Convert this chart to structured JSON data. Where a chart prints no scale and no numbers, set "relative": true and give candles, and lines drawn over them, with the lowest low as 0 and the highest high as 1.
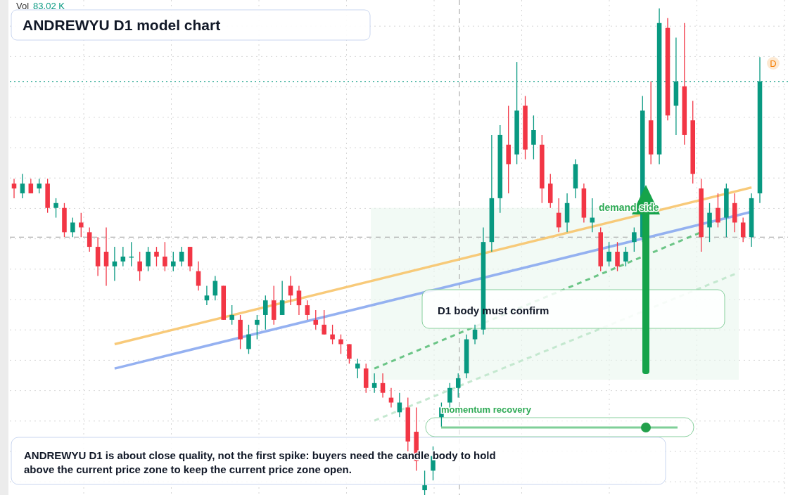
{
  "chart_data": {
    "type": "candlestick",
    "title": "ANDREWYU D1 model chart",
    "relative": true,
    "categories": [
      null,
      null,
      null,
      null,
      null,
      null,
      null,
      null,
      null,
      null,
      null,
      null,
      null,
      null,
      null,
      null,
      null,
      null,
      null,
      null,
      null,
      null,
      null,
      null,
      null,
      null,
      null,
      null,
      null,
      null,
      null,
      null,
      null,
      null,
      null,
      null,
      null,
      null,
      null,
      null,
      null,
      null,
      null,
      null,
      null,
      null,
      null,
      null,
      null,
      null,
      null,
      null,
      null,
      null,
      null,
      null,
      null,
      null,
      null,
      null,
      null,
      null,
      null,
      null,
      null,
      null,
      null,
      null,
      null,
      null,
      null,
      null,
      null,
      null,
      null,
      null,
      null,
      null,
      null,
      null,
      null,
      null,
      null,
      null,
      null,
      null,
      null,
      null,
      null,
      null
    ],
    "ohlc": [
      [
        0.64,
        0.65,
        0.61,
        0.63
      ],
      [
        0.62,
        0.66,
        0.61,
        0.64
      ],
      [
        0.64,
        0.65,
        0.62,
        0.62
      ],
      [
        0.63,
        0.65,
        0.62,
        0.64
      ],
      [
        0.64,
        0.65,
        0.58,
        0.59
      ],
      [
        0.59,
        0.61,
        0.57,
        0.6
      ],
      [
        0.59,
        0.6,
        0.53,
        0.54
      ],
      [
        0.54,
        0.57,
        0.53,
        0.56
      ],
      [
        0.56,
        0.58,
        0.53,
        0.55
      ],
      [
        0.54,
        0.55,
        0.5,
        0.51
      ],
      [
        0.51,
        0.53,
        0.45,
        0.47
      ],
      [
        0.5,
        0.55,
        0.43,
        0.47
      ],
      [
        0.47,
        0.51,
        0.44,
        0.48
      ],
      [
        0.48,
        0.51,
        0.47,
        0.49
      ],
      [
        0.49,
        0.52,
        0.47,
        0.49
      ],
      [
        0.48,
        0.5,
        0.44,
        0.46
      ],
      [
        0.47,
        0.51,
        0.46,
        0.5
      ],
      [
        0.5,
        0.51,
        0.47,
        0.49
      ],
      [
        0.49,
        0.52,
        0.46,
        0.47
      ],
      [
        0.47,
        0.5,
        0.46,
        0.48
      ],
      [
        0.48,
        0.51,
        0.47,
        0.5
      ],
      [
        0.51,
        0.51,
        0.46,
        0.47
      ],
      [
        0.46,
        0.48,
        0.42,
        0.43
      ],
      [
        0.4,
        0.43,
        0.39,
        0.41
      ],
      [
        0.41,
        0.45,
        0.4,
        0.44
      ],
      [
        0.43,
        0.43,
        0.36,
        0.36
      ],
      [
        0.36,
        0.39,
        0.35,
        0.37
      ],
      [
        0.36,
        0.37,
        0.3,
        0.32
      ],
      [
        0.3,
        0.35,
        0.29,
        0.33
      ],
      [
        0.35,
        0.37,
        0.32,
        0.36
      ],
      [
        0.37,
        0.41,
        0.34,
        0.4
      ],
      [
        0.4,
        0.43,
        0.35,
        0.36
      ],
      [
        0.37,
        0.44,
        0.37,
        0.4
      ],
      [
        0.43,
        0.45,
        0.39,
        0.41
      ],
      [
        0.42,
        0.43,
        0.37,
        0.39
      ],
      [
        0.39,
        0.4,
        0.36,
        0.37
      ],
      [
        0.36,
        0.38,
        0.34,
        0.35
      ],
      [
        0.35,
        0.38,
        0.33,
        0.33
      ],
      [
        0.33,
        0.35,
        0.31,
        0.32
      ],
      [
        0.32,
        0.33,
        0.29,
        0.31
      ],
      [
        0.31,
        0.31,
        0.27,
        0.28
      ],
      [
        0.26,
        0.28,
        0.24,
        0.27
      ],
      [
        0.26,
        0.27,
        0.21,
        0.22
      ],
      [
        0.22,
        0.25,
        0.21,
        0.23
      ],
      [
        0.23,
        0.25,
        0.2,
        0.21
      ],
      [
        0.2,
        0.22,
        0.18,
        0.19
      ],
      [
        0.17,
        0.21,
        0.16,
        0.19
      ],
      [
        0.18,
        0.2,
        0.09,
        0.11
      ],
      [
        0.13,
        0.18,
        0.05,
        0.07
      ],
      [
        0.01,
        0.05,
        0,
        0.02
      ],
      [
        0.05,
        0.1,
        0.03,
        0.08
      ],
      [
        0.16,
        0.19,
        0.14,
        0.18
      ],
      [
        0.19,
        0.23,
        0.17,
        0.22
      ],
      [
        0.22,
        0.25,
        0.2,
        0.24
      ],
      [
        0.25,
        0.33,
        0.24,
        0.32
      ],
      [
        0.32,
        0.35,
        0.31,
        0.34
      ],
      [
        0.34,
        0.55,
        0.33,
        0.52
      ],
      [
        0.52,
        0.74,
        0.5,
        0.61
      ],
      [
        0.61,
        0.76,
        0.58,
        0.74
      ],
      [
        0.72,
        0.8,
        0.62,
        0.68
      ],
      [
        0.7,
        0.89,
        0.68,
        0.79
      ],
      [
        0.8,
        0.82,
        0.69,
        0.71
      ],
      [
        0.72,
        0.78,
        0.69,
        0.75
      ],
      [
        0.72,
        0.74,
        0.6,
        0.63
      ],
      [
        0.64,
        0.66,
        0.59,
        0.6
      ],
      [
        0.58,
        0.61,
        0.54,
        0.55
      ],
      [
        0.56,
        0.62,
        0.54,
        0.6
      ],
      [
        0.63,
        0.69,
        0.61,
        0.68
      ],
      [
        0.63,
        0.64,
        0.56,
        0.57
      ],
      [
        0.56,
        0.61,
        0.54,
        0.57
      ],
      [
        0.54,
        0.55,
        0.46,
        0.47
      ],
      [
        0.48,
        0.52,
        0.47,
        0.5
      ],
      [
        0.5,
        0.52,
        0.46,
        0.47
      ],
      [
        0.48,
        0.51,
        0.47,
        0.5
      ],
      [
        0.52,
        0.55,
        0.5,
        0.54
      ],
      [
        0.53,
        0.82,
        0.52,
        0.79
      ],
      [
        0.77,
        0.85,
        0.68,
        0.7
      ],
      [
        0.7,
        1,
        0.68,
        0.97
      ],
      [
        0.96,
        0.98,
        0.77,
        0.78
      ],
      [
        0.8,
        0.94,
        0.74,
        0.85
      ],
      [
        0.84,
        0.97,
        0.72,
        0.74
      ],
      [
        0.77,
        0.81,
        0.64,
        0.66
      ],
      [
        0.63,
        0.65,
        0.5,
        0.53
      ],
      [
        0.55,
        0.6,
        0.52,
        0.58
      ],
      [
        0.59,
        0.62,
        0.55,
        0.56
      ],
      [
        0.57,
        0.64,
        0.53,
        0.63
      ],
      [
        0.6,
        0.62,
        0.54,
        0.56
      ],
      [
        0.56,
        0.57,
        0.52,
        0.53
      ],
      [
        0.53,
        0.62,
        0.51,
        0.61
      ],
      [
        0.62,
        0.9,
        0.6,
        0.85
      ]
    ],
    "series": [
      {
        "type": "line",
        "color": "#f7c46c",
        "values": [
          null,
          null,
          null,
          null,
          null,
          null,
          null,
          null,
          null,
          null,
          null,
          null,
          0.31,
          null,
          null,
          null,
          null,
          null,
          null,
          null,
          null,
          null,
          null,
          null,
          null,
          null,
          null,
          null,
          null,
          null,
          null,
          null,
          null,
          null,
          null,
          null,
          null,
          null,
          null,
          null,
          null,
          null,
          null,
          null,
          null,
          null,
          null,
          null,
          null,
          null,
          null,
          null,
          null,
          null,
          null,
          null,
          null,
          null,
          null,
          null,
          null,
          null,
          null,
          null,
          null,
          null,
          null,
          null,
          null,
          null,
          null,
          null,
          null,
          null,
          null,
          null,
          null,
          null,
          null,
          null,
          null,
          null,
          null,
          null,
          null,
          null,
          null,
          null,
          0.632,
          null
        ]
      },
      {
        "type": "line",
        "color": "#8aa9f0",
        "values": [
          null,
          null,
          null,
          null,
          null,
          null,
          null,
          null,
          null,
          null,
          null,
          null,
          0.26,
          null,
          null,
          null,
          null,
          null,
          null,
          null,
          null,
          null,
          null,
          null,
          null,
          null,
          null,
          null,
          null,
          null,
          null,
          null,
          null,
          null,
          null,
          null,
          null,
          null,
          null,
          null,
          null,
          null,
          null,
          null,
          null,
          null,
          null,
          null,
          null,
          null,
          null,
          null,
          null,
          null,
          null,
          null,
          null,
          null,
          null,
          null,
          null,
          null,
          null,
          null,
          null,
          null,
          null,
          null,
          null,
          null,
          null,
          null,
          null,
          null,
          null,
          null,
          null,
          null,
          null,
          null,
          null,
          null,
          null,
          null,
          null,
          null,
          null,
          null,
          0.582,
          null
        ]
      },
      {
        "type": "line",
        "color": "#5cbf7a",
        "line_style": "dashed",
        "values": [
          null,
          null,
          null,
          null,
          null,
          null,
          null,
          null,
          null,
          null,
          null,
          null,
          null,
          null,
          null,
          null,
          null,
          null,
          null,
          null,
          null,
          null,
          null,
          null,
          null,
          null,
          null,
          null,
          null,
          null,
          null,
          null,
          null,
          null,
          null,
          null,
          null,
          null,
          null,
          null,
          null,
          null,
          null,
          0.26,
          null,
          null,
          null,
          null,
          null,
          null,
          null,
          null,
          null,
          null,
          null,
          null,
          null,
          null,
          null,
          null,
          null,
          null,
          null,
          null,
          null,
          null,
          null,
          null,
          null,
          null,
          null,
          null,
          null,
          null,
          null,
          null,
          null,
          null,
          null,
          null,
          null,
          null,
          0.54,
          null,
          null,
          null,
          null,
          null,
          null,
          null
        ]
      },
      {
        "type": "line",
        "color": "#bfe6cb",
        "line_style": "dashed",
        "values": [
          null,
          null,
          null,
          null,
          null,
          null,
          null,
          null,
          null,
          null,
          null,
          null,
          null,
          null,
          null,
          null,
          null,
          null,
          null,
          null,
          null,
          null,
          null,
          null,
          null,
          null,
          null,
          null,
          null,
          null,
          null,
          null,
          null,
          null,
          null,
          null,
          null,
          null,
          null,
          null,
          null,
          null,
          null,
          0.153,
          null,
          null,
          null,
          null,
          null,
          null,
          null,
          null,
          null,
          null,
          null,
          null,
          null,
          null,
          null,
          null,
          null,
          null,
          null,
          null,
          null,
          null,
          null,
          null,
          null,
          null,
          null,
          null,
          null,
          null,
          null,
          null,
          null,
          null,
          null,
          null,
          null,
          null,
          null,
          null,
          null,
          null,
          0.454,
          null,
          null,
          null
        ]
      }
    ],
    "ref_lines": [
      {
        "axis": "y",
        "value": 0.53,
        "color": "#9e9e9e",
        "line_style": "dashed"
      },
      {
        "axis": "y",
        "value": 0.85,
        "color": "#089981",
        "line_style": "dotted"
      }
    ],
    "bands": [
      {
        "axis": "y",
        "from": 0.237,
        "to": 0.59,
        "label": "demand side",
        "color": "#e9f7ee"
      }
    ],
    "annotations": [
      "Vol 83.02 K",
      "D",
      "D1 body must confirm",
      "momentum recovery",
      "ANDREWYU D1 is about close quality, not the first spike: buyers need the candle body to hold above the current price zone to keep the current price zone open."
    ],
    "grid": true
  }
}
